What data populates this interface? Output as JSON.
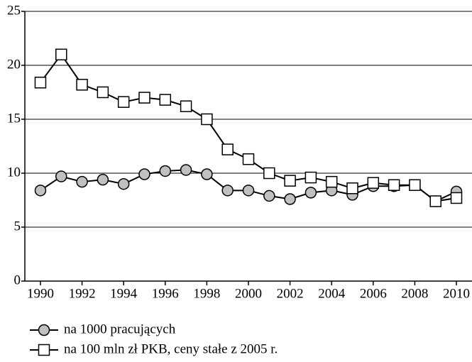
{
  "chart_data": {
    "type": "line",
    "x": [
      1990,
      1991,
      1992,
      1993,
      1994,
      1995,
      1996,
      1997,
      1998,
      1999,
      2000,
      2001,
      2002,
      2003,
      2004,
      2005,
      2006,
      2007,
      2008,
      2009,
      2010
    ],
    "series": [
      {
        "name": "na 1000 pracujących",
        "color": "#c0c0c0",
        "marker": "circle",
        "values": [
          8.4,
          9.7,
          9.2,
          9.4,
          9.0,
          9.9,
          10.2,
          10.3,
          9.9,
          8.4,
          8.4,
          7.9,
          7.6,
          8.2,
          8.4,
          8.0,
          8.8,
          8.8,
          8.9,
          7.4,
          8.3
        ]
      },
      {
        "name": "na 100 mln zł PKB, ceny stałe z 2005 r.",
        "color": "#ffffff",
        "marker": "square",
        "values": [
          18.4,
          21.0,
          18.2,
          17.5,
          16.6,
          17.0,
          16.8,
          16.2,
          15.0,
          12.2,
          11.3,
          10.0,
          9.3,
          9.6,
          9.2,
          8.6,
          9.1,
          8.9,
          8.9,
          7.4,
          7.7
        ]
      }
    ],
    "xlim": [
      1989.25,
      2010.75
    ],
    "xticks": [
      1990,
      1992,
      1994,
      1996,
      1998,
      2000,
      2002,
      2004,
      2006,
      2008,
      2010
    ],
    "ylim": [
      0,
      25
    ],
    "yticks": [
      0,
      5,
      10,
      15,
      20,
      25
    ],
    "grid": true,
    "legend": "bottom"
  }
}
